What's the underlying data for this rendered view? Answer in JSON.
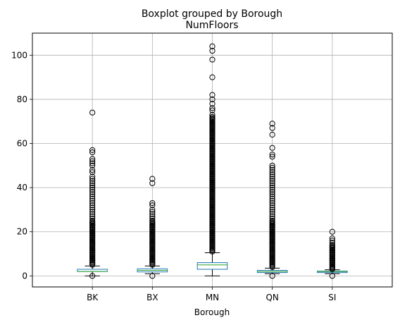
{
  "chart_data": {
    "type": "boxplot",
    "suptitle": "Boxplot grouped by Borough",
    "title": "NumFloors",
    "xlabel": "Borough",
    "ylabel": "",
    "ylim": [
      -5,
      110
    ],
    "yticks": [
      0,
      20,
      40,
      60,
      80,
      100
    ],
    "grid": true,
    "colors": {
      "box": "#1f77b4",
      "median": "#2ca02c",
      "whisker": "#000000",
      "grid": "#b0b0b0"
    },
    "categories": [
      "BK",
      "BX",
      "MN",
      "QN",
      "SI"
    ],
    "boxes": [
      {
        "name": "BK",
        "whislo": 0,
        "q1": 2,
        "median": 2,
        "q3": 3,
        "whishi": 4.5,
        "fliers": [
          0,
          5,
          5.5,
          6,
          6.5,
          7,
          7.5,
          8,
          8.5,
          9,
          9.5,
          10,
          10.5,
          11,
          11.5,
          12,
          12.5,
          13,
          13.5,
          14,
          14.5,
          15,
          15.5,
          16,
          16.5,
          17,
          17.5,
          18,
          18.5,
          19,
          19.5,
          20,
          20.5,
          21,
          21.5,
          22,
          22.5,
          23,
          23.5,
          24,
          24.5,
          25,
          26,
          27,
          28,
          29,
          30,
          31,
          32,
          33,
          34,
          35,
          36,
          37,
          38,
          39,
          40,
          41,
          42,
          43,
          44,
          45,
          47,
          48,
          50,
          51,
          52,
          53,
          56,
          57,
          74
        ]
      },
      {
        "name": "BX",
        "whislo": 1,
        "q1": 1.8,
        "median": 2.5,
        "q3": 3.2,
        "whishi": 4.5,
        "fliers": [
          0,
          5,
          5.5,
          6,
          6.5,
          7,
          7.5,
          8,
          8.5,
          9,
          9.5,
          10,
          10.5,
          11,
          11.5,
          12,
          12.5,
          13,
          13.5,
          14,
          14.5,
          15,
          15.5,
          16,
          16.5,
          17,
          17.5,
          18,
          18.5,
          19,
          19.5,
          20,
          20.5,
          21,
          21.5,
          22,
          22.5,
          23,
          23.5,
          24,
          24.5,
          25,
          26,
          27,
          28,
          29,
          30,
          32,
          33,
          42,
          44
        ]
      },
      {
        "name": "MN",
        "whislo": 0,
        "q1": 3,
        "median": 5,
        "q3": 6,
        "whishi": 10.5,
        "fliers": [
          11,
          11.5,
          12,
          12.5,
          13,
          13.5,
          14,
          14.5,
          15,
          15.5,
          16,
          16.5,
          17,
          17.5,
          18,
          18.5,
          19,
          19.5,
          20,
          20.5,
          21,
          21.5,
          22,
          22.5,
          23,
          23.5,
          24,
          24.5,
          25,
          25.5,
          26,
          26.5,
          27,
          27.5,
          28,
          28.5,
          29,
          29.5,
          30,
          30.5,
          31,
          31.5,
          32,
          32.5,
          33,
          33.5,
          34,
          34.5,
          35,
          35.5,
          36,
          36.5,
          37,
          37.5,
          38,
          38.5,
          39,
          39.5,
          40,
          40.5,
          41,
          41.5,
          42,
          42.5,
          43,
          43.5,
          44,
          44.5,
          45,
          45.5,
          46,
          46.5,
          47,
          47.5,
          48,
          48.5,
          49,
          49.5,
          50,
          50.5,
          51,
          51.5,
          52,
          52.5,
          53,
          53.5,
          54,
          54.5,
          55,
          55.5,
          56,
          56.5,
          57,
          57.5,
          58,
          58.5,
          59,
          59.5,
          60,
          60.5,
          61,
          61.5,
          62,
          62.5,
          63,
          63.5,
          64,
          64.5,
          65,
          65.5,
          66,
          66.5,
          67,
          67.5,
          68,
          68.5,
          69,
          69.5,
          70,
          70.5,
          71,
          71.5,
          72,
          73,
          75,
          76,
          78,
          80,
          82,
          90,
          98,
          102,
          104
        ]
      },
      {
        "name": "QN",
        "whislo": 1,
        "q1": 1.5,
        "median": 2,
        "q3": 2.5,
        "whishi": 3.5,
        "fliers": [
          0,
          4,
          4.5,
          5,
          5.5,
          6,
          6.5,
          7,
          7.5,
          8,
          8.5,
          9,
          9.5,
          10,
          10.5,
          11,
          11.5,
          12,
          12.5,
          13,
          13.5,
          14,
          14.5,
          15,
          15.5,
          16,
          16.5,
          17,
          17.5,
          18,
          18.5,
          19,
          19.5,
          20,
          20.5,
          21,
          21.5,
          22,
          22.5,
          23,
          23.5,
          24,
          24.5,
          25,
          26,
          27,
          28,
          29,
          30,
          31,
          32,
          33,
          34,
          35,
          36,
          37,
          38,
          39,
          40,
          41,
          42,
          43,
          44,
          45,
          46,
          47,
          48,
          49,
          50,
          54,
          55,
          58,
          64,
          67,
          69
        ]
      },
      {
        "name": "SI",
        "whislo": 1,
        "q1": 1.5,
        "median": 2,
        "q3": 2.2,
        "whishi": 2.8,
        "fliers": [
          0,
          3,
          3.5,
          4,
          4.5,
          5,
          5.5,
          6,
          6.5,
          7,
          7.5,
          8,
          8.5,
          9,
          9.5,
          10,
          10.5,
          11,
          11.5,
          12,
          12.5,
          13,
          13.5,
          14,
          15,
          16,
          17,
          20
        ]
      }
    ]
  }
}
